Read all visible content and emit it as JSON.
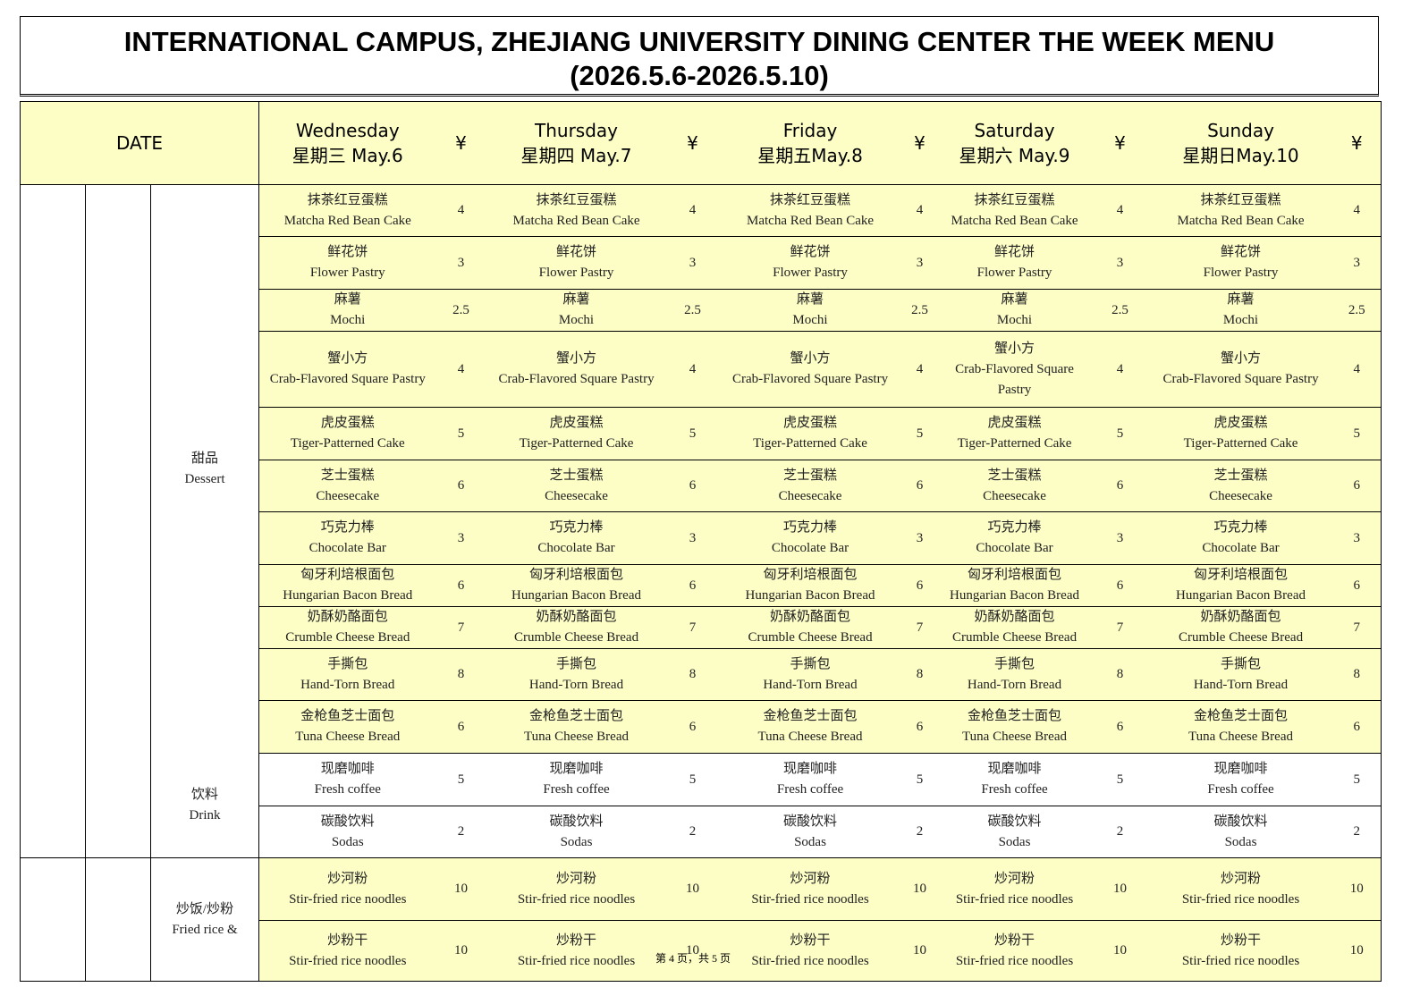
{
  "title": "INTERNATIONAL CAMPUS, ZHEJIANG UNIVERSITY DINING CENTER THE WEEK MENU",
  "subtitle": "(2026.5.6-2026.5.10)",
  "header": {
    "date": "DATE",
    "currency": "¥",
    "days": [
      {
        "name": "Wednesday",
        "date": "星期三  May.6"
      },
      {
        "name": "Thursday",
        "date": "星期四 May.7"
      },
      {
        "name": "Friday",
        "date": "星期五May.8"
      },
      {
        "name": "Saturday",
        "date": "星期六 May.9"
      },
      {
        "name": "Sunday",
        "date": "星期日May.10"
      }
    ]
  },
  "sections": [
    {
      "categories": [
        {
          "zh": "甜品",
          "en": "Dessert",
          "items": [
            {
              "zh": "抹茶红豆蛋糕",
              "en": "Matcha Red Bean Cake",
              "price": 4
            },
            {
              "zh": "鲜花饼",
              "en": "Flower Pastry",
              "price": 3
            },
            {
              "zh": "麻薯",
              "en": "Mochi",
              "price": 2.5
            },
            {
              "zh": "蟹小方",
              "en": "Crab-Flavored Square Pastry",
              "price": 4
            },
            {
              "zh": "虎皮蛋糕",
              "en": "Tiger-Patterned Cake",
              "price": 5
            },
            {
              "zh": "芝士蛋糕",
              "en": "Cheesecake",
              "price": 6
            },
            {
              "zh": "巧克力棒",
              "en": "Chocolate Bar",
              "price": 3
            },
            {
              "zh": "匈牙利培根面包",
              "en": "Hungarian Bacon Bread",
              "price": 6
            },
            {
              "zh": "奶酥奶酪面包",
              "en": "Crumble Cheese Bread",
              "price": 7
            },
            {
              "zh": "手撕包",
              "en": "Hand-Torn Bread",
              "price": 8
            },
            {
              "zh": "金枪鱼芝士面包",
              "en": "Tuna Cheese Bread",
              "price": 6
            }
          ]
        },
        {
          "zh": "饮料",
          "en": "Drink",
          "items": [
            {
              "zh": "现磨咖啡",
              "en": "Fresh coffee",
              "price": 5
            },
            {
              "zh": "碳酸饮料",
              "en": "Sodas",
              "price": 2
            }
          ]
        }
      ]
    },
    {
      "categories": [
        {
          "zh": "炒饭/炒粉",
          "en": "Fried rice &",
          "items": [
            {
              "zh": "炒河粉",
              "en": "Stir-fried rice noodles",
              "price": 10
            },
            {
              "zh": "炒粉干",
              "en": "Stir-fried rice noodles",
              "price": 10
            }
          ]
        }
      ]
    }
  ],
  "footer": "第 4 页，共 5 页"
}
